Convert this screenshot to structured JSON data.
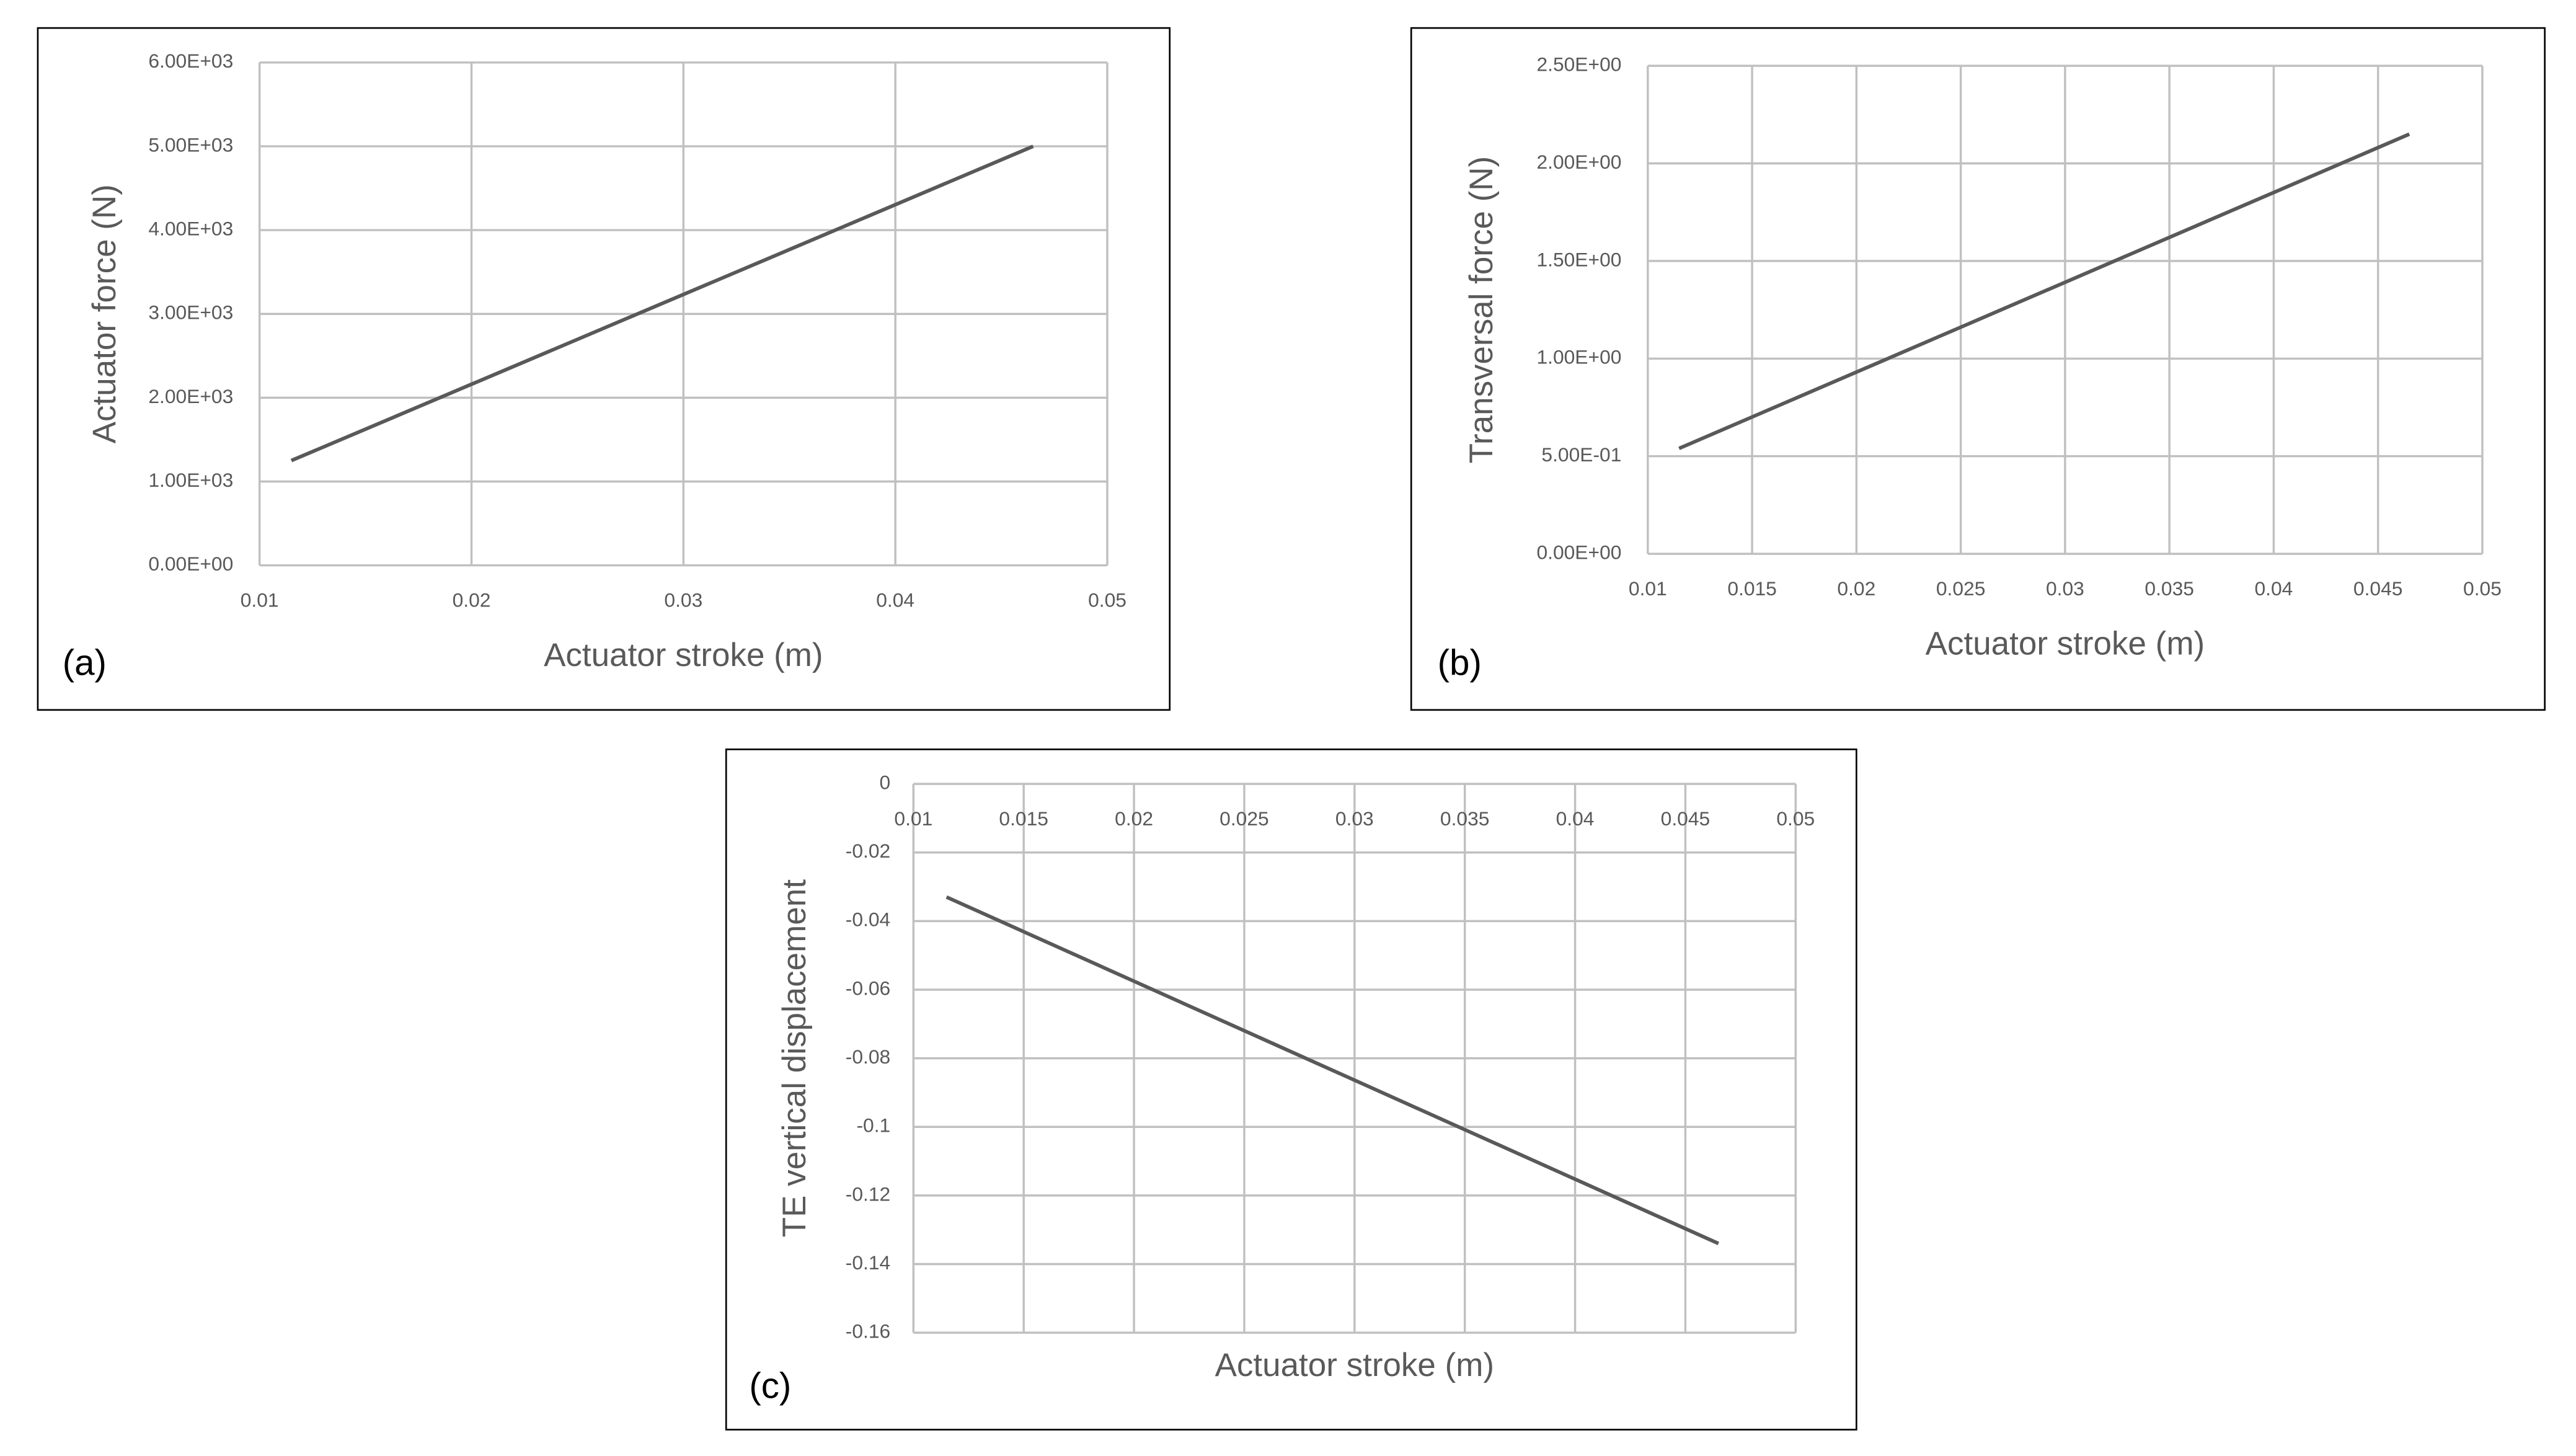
{
  "chart_data": [
    {
      "type": "line",
      "panel_label": "(a)",
      "x_label": "Actuator stroke (m)",
      "y_label": "Actuator force (N)",
      "x": [
        0.0115,
        0.0465
      ],
      "series": [
        {
          "name": "Actuator force",
          "color": "#595959",
          "values": [
            1250,
            5000
          ]
        }
      ],
      "xlim": [
        0.01,
        0.05
      ],
      "xticks": [
        0.01,
        0.02,
        0.03,
        0.04,
        0.05
      ],
      "ylim": [
        0,
        6000
      ],
      "yticks": [
        {
          "value": 0,
          "label": "0.00E+00"
        },
        {
          "value": 1000,
          "label": "1.00E+03"
        },
        {
          "value": 2000,
          "label": "2.00E+03"
        },
        {
          "value": 3000,
          "label": "3.00E+03"
        },
        {
          "value": 4000,
          "label": "4.00E+03"
        },
        {
          "value": 5000,
          "label": "5.00E+03"
        },
        {
          "value": 6000,
          "label": "6.00E+03"
        }
      ],
      "grid": true
    },
    {
      "type": "line",
      "panel_label": "(b)",
      "x_label": "Actuator stroke (m)",
      "y_label": "Transversal force (N)",
      "x": [
        0.0115,
        0.0465
      ],
      "series": [
        {
          "name": "Transversal force",
          "color": "#595959",
          "values": [
            0.54,
            2.15
          ]
        }
      ],
      "xlim": [
        0.01,
        0.05
      ],
      "xticks": [
        0.01,
        0.015,
        0.02,
        0.025,
        0.03,
        0.035,
        0.04,
        0.045,
        0.05
      ],
      "ylim": [
        0,
        2.5
      ],
      "yticks": [
        {
          "value": 0,
          "label": "0.00E+00"
        },
        {
          "value": 0.5,
          "label": "5.00E-01"
        },
        {
          "value": 1,
          "label": "1.00E+00"
        },
        {
          "value": 1.5,
          "label": "1.50E+00"
        },
        {
          "value": 2,
          "label": "2.00E+00"
        },
        {
          "value": 2.5,
          "label": "2.50E+00"
        }
      ],
      "grid": true
    },
    {
      "type": "line",
      "panel_label": "(c)",
      "x_label": "Actuator stroke (m)",
      "y_label": "TE vertical displacement",
      "x": [
        0.0115,
        0.0465
      ],
      "series": [
        {
          "name": "TE vertical displacement",
          "color": "#595959",
          "values": [
            -0.033,
            -0.134
          ]
        }
      ],
      "xlim": [
        0.01,
        0.05
      ],
      "xticks": [
        0.01,
        0.015,
        0.02,
        0.025,
        0.03,
        0.035,
        0.04,
        0.045,
        0.05
      ],
      "ylim": [
        -0.16,
        0
      ],
      "yticks": [
        0,
        -0.02,
        -0.04,
        -0.06,
        -0.08,
        -0.1,
        -0.12,
        -0.14,
        -0.16
      ],
      "grid": true
    }
  ]
}
